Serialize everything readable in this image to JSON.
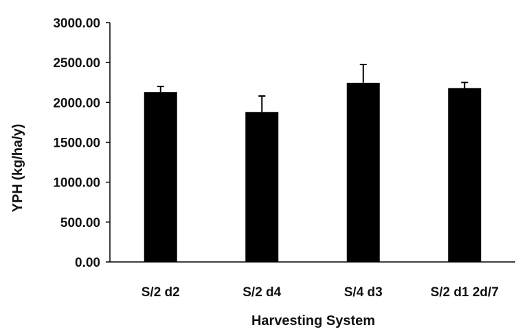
{
  "chart_data": {
    "type": "bar",
    "title": "",
    "xlabel": "Harvesting System",
    "ylabel": "YPH (kg/ha/y)",
    "categories": [
      "S/2 d2",
      "S/2 d4",
      "S/4 d3",
      "S/2 d1 2d/7"
    ],
    "values": [
      2130,
      1880,
      2245,
      2180
    ],
    "error": [
      70,
      200,
      230,
      70
    ],
    "ylim": [
      0,
      3000
    ],
    "yticks": [
      "0.00",
      "500.00",
      "1000.00",
      "1500.00",
      "2000.00",
      "2500.00",
      "3000.00"
    ],
    "grid": false,
    "bar_color": "#000000"
  }
}
